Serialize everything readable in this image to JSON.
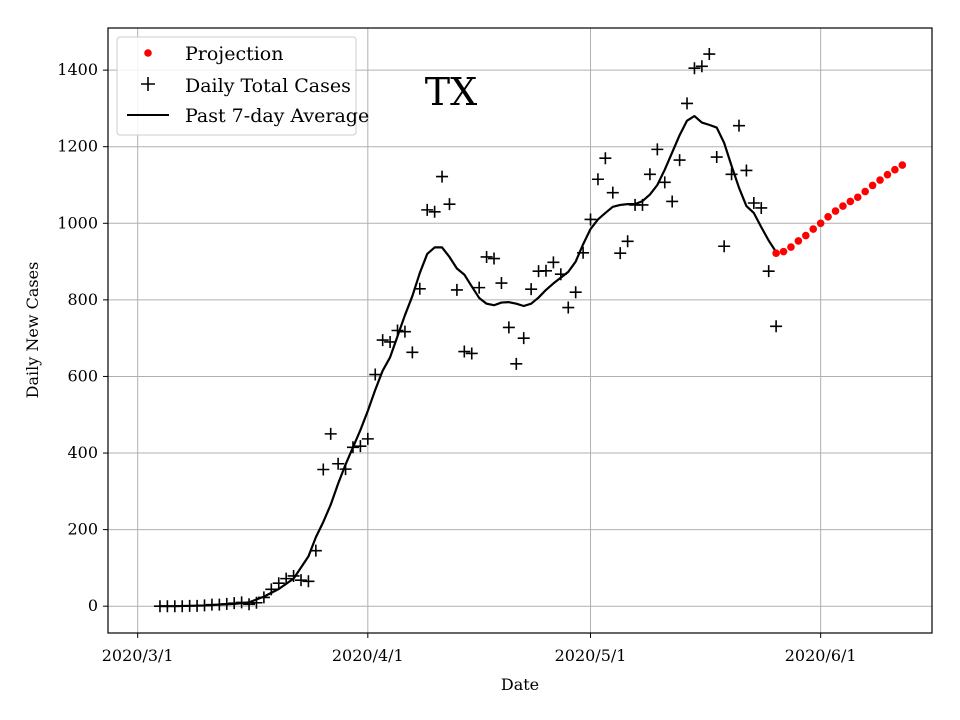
{
  "chart_data": {
    "type": "line",
    "title": "TX",
    "xlabel": "Date",
    "ylabel": "Daily New Cases",
    "x_ticks": [
      "2020/3/1",
      "2020/4/1",
      "2020/5/1",
      "2020/6/1"
    ],
    "y_ticks": [
      0,
      200,
      400,
      600,
      800,
      1000,
      1200,
      1400
    ],
    "xlim": [
      "2020-02-26",
      "2020-06-16"
    ],
    "ylim": [
      -70,
      1510
    ],
    "grid": true,
    "legend_position": "top-left",
    "series": [
      {
        "name": "Projection",
        "kind": "scatter",
        "marker": "dot",
        "color": "#ff0000",
        "points": [
          [
            "2020-05-26",
            922
          ],
          [
            "2020-05-27",
            926
          ],
          [
            "2020-05-28",
            938
          ],
          [
            "2020-05-29",
            954
          ],
          [
            "2020-05-30",
            968
          ],
          [
            "2020-05-31",
            985
          ],
          [
            "2020-06-01",
            1000
          ],
          [
            "2020-06-02",
            1017
          ],
          [
            "2020-06-03",
            1032
          ],
          [
            "2020-06-04",
            1045
          ],
          [
            "2020-06-05",
            1057
          ],
          [
            "2020-06-06",
            1068
          ],
          [
            "2020-06-07",
            1083
          ],
          [
            "2020-06-08",
            1099
          ],
          [
            "2020-06-09",
            1113
          ],
          [
            "2020-06-10",
            1127
          ],
          [
            "2020-06-11",
            1140
          ],
          [
            "2020-06-12",
            1152
          ]
        ]
      },
      {
        "name": "Daily Total Cases",
        "kind": "scatter",
        "marker": "plus",
        "color": "#000000",
        "points": [
          [
            "2020-03-04",
            0
          ],
          [
            "2020-03-05",
            0
          ],
          [
            "2020-03-06",
            0
          ],
          [
            "2020-03-07",
            0
          ],
          [
            "2020-03-08",
            1
          ],
          [
            "2020-03-09",
            1
          ],
          [
            "2020-03-10",
            2
          ],
          [
            "2020-03-11",
            4
          ],
          [
            "2020-03-12",
            4
          ],
          [
            "2020-03-13",
            6
          ],
          [
            "2020-03-14",
            8
          ],
          [
            "2020-03-15",
            10
          ],
          [
            "2020-03-16",
            5
          ],
          [
            "2020-03-17",
            9
          ],
          [
            "2020-03-18",
            23
          ],
          [
            "2020-03-19",
            44
          ],
          [
            "2020-03-20",
            60
          ],
          [
            "2020-03-21",
            72
          ],
          [
            "2020-03-22",
            79
          ],
          [
            "2020-03-23",
            68
          ],
          [
            "2020-03-24",
            65
          ],
          [
            "2020-03-25",
            145
          ],
          [
            "2020-03-26",
            357
          ],
          [
            "2020-03-27",
            450
          ],
          [
            "2020-03-28",
            372
          ],
          [
            "2020-03-29",
            358
          ],
          [
            "2020-03-30",
            415
          ],
          [
            "2020-03-31",
            418
          ],
          [
            "2020-04-01",
            437
          ],
          [
            "2020-04-02",
            605
          ],
          [
            "2020-04-03",
            695
          ],
          [
            "2020-04-04",
            690
          ],
          [
            "2020-04-05",
            720
          ],
          [
            "2020-04-06",
            717
          ],
          [
            "2020-04-07",
            663
          ],
          [
            "2020-04-08",
            829
          ],
          [
            "2020-04-09",
            1035
          ],
          [
            "2020-04-10",
            1030
          ],
          [
            "2020-04-11",
            1122
          ],
          [
            "2020-04-12",
            1050
          ],
          [
            "2020-04-13",
            826
          ],
          [
            "2020-04-14",
            665
          ],
          [
            "2020-04-15",
            660
          ],
          [
            "2020-04-16",
            832
          ],
          [
            "2020-04-17",
            912
          ],
          [
            "2020-04-18",
            908
          ],
          [
            "2020-04-19",
            844
          ],
          [
            "2020-04-20",
            728
          ],
          [
            "2020-04-21",
            633
          ],
          [
            "2020-04-22",
            700
          ],
          [
            "2020-04-23",
            828
          ],
          [
            "2020-04-24",
            875
          ],
          [
            "2020-04-25",
            876
          ],
          [
            "2020-04-26",
            898
          ],
          [
            "2020-04-27",
            867
          ],
          [
            "2020-04-28",
            780
          ],
          [
            "2020-04-29",
            820
          ],
          [
            "2020-04-30",
            923
          ],
          [
            "2020-05-01",
            1010
          ],
          [
            "2020-05-02",
            1115
          ],
          [
            "2020-05-03",
            1170
          ],
          [
            "2020-05-04",
            1080
          ],
          [
            "2020-05-05",
            922
          ],
          [
            "2020-05-06",
            953
          ],
          [
            "2020-05-07",
            1048
          ],
          [
            "2020-05-08",
            1048
          ],
          [
            "2020-05-09",
            1128
          ],
          [
            "2020-05-10",
            1193
          ],
          [
            "2020-05-11",
            1107
          ],
          [
            "2020-05-12",
            1057
          ],
          [
            "2020-05-13",
            1165
          ],
          [
            "2020-05-14",
            1313
          ],
          [
            "2020-05-15",
            1405
          ],
          [
            "2020-05-16",
            1410
          ],
          [
            "2020-05-17",
            1442
          ],
          [
            "2020-05-18",
            1173
          ],
          [
            "2020-05-19",
            940
          ],
          [
            "2020-05-20",
            1128
          ],
          [
            "2020-05-21",
            1255
          ],
          [
            "2020-05-22",
            1138
          ],
          [
            "2020-05-23",
            1053
          ],
          [
            "2020-05-24",
            1040
          ],
          [
            "2020-05-25",
            875
          ],
          [
            "2020-05-26",
            731
          ]
        ]
      },
      {
        "name": "Past 7-day Average",
        "kind": "line",
        "color": "#000000",
        "points": [
          [
            "2020-03-04",
            0
          ],
          [
            "2020-03-06",
            0
          ],
          [
            "2020-03-08",
            1
          ],
          [
            "2020-03-10",
            2
          ],
          [
            "2020-03-12",
            4
          ],
          [
            "2020-03-14",
            6
          ],
          [
            "2020-03-16",
            10
          ],
          [
            "2020-03-18",
            25
          ],
          [
            "2020-03-20",
            45
          ],
          [
            "2020-03-22",
            72
          ],
          [
            "2020-03-24",
            130
          ],
          [
            "2020-03-25",
            180
          ],
          [
            "2020-03-26",
            220
          ],
          [
            "2020-03-27",
            265
          ],
          [
            "2020-03-28",
            320
          ],
          [
            "2020-03-29",
            370
          ],
          [
            "2020-03-30",
            415
          ],
          [
            "2020-03-31",
            460
          ],
          [
            "2020-04-01",
            510
          ],
          [
            "2020-04-02",
            565
          ],
          [
            "2020-04-03",
            615
          ],
          [
            "2020-04-04",
            650
          ],
          [
            "2020-04-05",
            705
          ],
          [
            "2020-04-06",
            760
          ],
          [
            "2020-04-07",
            810
          ],
          [
            "2020-04-08",
            870
          ],
          [
            "2020-04-09",
            920
          ],
          [
            "2020-04-10",
            937
          ],
          [
            "2020-04-11",
            937
          ],
          [
            "2020-04-12",
            912
          ],
          [
            "2020-04-13",
            882
          ],
          [
            "2020-04-14",
            866
          ],
          [
            "2020-04-15",
            835
          ],
          [
            "2020-04-16",
            805
          ],
          [
            "2020-04-17",
            790
          ],
          [
            "2020-04-18",
            786
          ],
          [
            "2020-04-19",
            793
          ],
          [
            "2020-04-20",
            794
          ],
          [
            "2020-04-21",
            790
          ],
          [
            "2020-04-22",
            784
          ],
          [
            "2020-04-23",
            790
          ],
          [
            "2020-04-24",
            806
          ],
          [
            "2020-04-25",
            826
          ],
          [
            "2020-04-26",
            843
          ],
          [
            "2020-04-27",
            858
          ],
          [
            "2020-04-28",
            873
          ],
          [
            "2020-04-29",
            900
          ],
          [
            "2020-04-30",
            945
          ],
          [
            "2020-05-01",
            985
          ],
          [
            "2020-05-02",
            1010
          ],
          [
            "2020-05-03",
            1027
          ],
          [
            "2020-05-04",
            1043
          ],
          [
            "2020-05-05",
            1048
          ],
          [
            "2020-05-06",
            1050
          ],
          [
            "2020-05-07",
            1050
          ],
          [
            "2020-05-08",
            1058
          ],
          [
            "2020-05-09",
            1075
          ],
          [
            "2020-05-10",
            1100
          ],
          [
            "2020-05-11",
            1140
          ],
          [
            "2020-05-12",
            1185
          ],
          [
            "2020-05-13",
            1230
          ],
          [
            "2020-05-14",
            1268
          ],
          [
            "2020-05-15",
            1280
          ],
          [
            "2020-05-16",
            1263
          ],
          [
            "2020-05-17",
            1257
          ],
          [
            "2020-05-18",
            1250
          ],
          [
            "2020-05-19",
            1210
          ],
          [
            "2020-05-20",
            1150
          ],
          [
            "2020-05-21",
            1093
          ],
          [
            "2020-05-22",
            1045
          ],
          [
            "2020-05-23",
            1027
          ],
          [
            "2020-05-24",
            990
          ],
          [
            "2020-05-25",
            955
          ],
          [
            "2020-05-26",
            925
          ]
        ]
      }
    ]
  }
}
